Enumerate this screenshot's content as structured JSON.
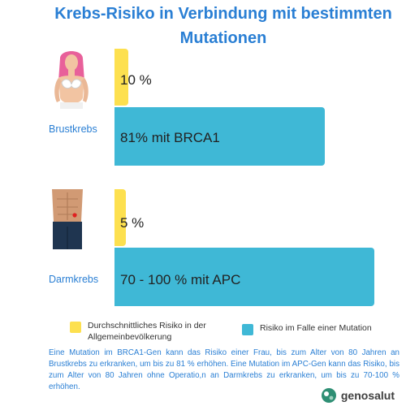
{
  "chart_data": {
    "type": "bar",
    "title": "Krebs-Risiko in Verbindung mit bestimmten Mutationen",
    "unit": "%",
    "categories": [
      "Brustkrebs",
      "Darmkrebs"
    ],
    "series": [
      {
        "name": "Durchschnittliches Risiko in der Allgemeinbevölkerung",
        "values": [
          10,
          5
        ],
        "labels": [
          "10 %",
          "5 %"
        ],
        "color": "#fde04f"
      },
      {
        "name": "Risiko im Falle einer Mutation",
        "values": [
          81,
          100
        ],
        "labels": [
          "81% mit BRCA1",
          "70 - 100 % mit APC"
        ],
        "color": "#3fb8d6"
      }
    ],
    "legend": "bottom"
  },
  "note": "Eine Mutation im BRCA1-Gen kann das Risiko einer Frau, bis zum Alter von 80 Jahren an Brustkrebs zu erkranken, um bis zu 81 % erhöhen. Eine Mutation im APC-Gen kann das Risiko, bis zum Alter von 80 Jahren ohne Operatio,n an Darmkrebs zu erkranken, um bis zu 70-100 % erhöhen.",
  "brand": {
    "name": "genosalut"
  },
  "icons": [
    "woman-torso-icon",
    "man-abdomen-icon",
    "genosalut-logo-icon"
  ],
  "colors": {
    "title": "#2a7fd4",
    "average": "#fde04f",
    "mutation": "#3fb8d6"
  }
}
